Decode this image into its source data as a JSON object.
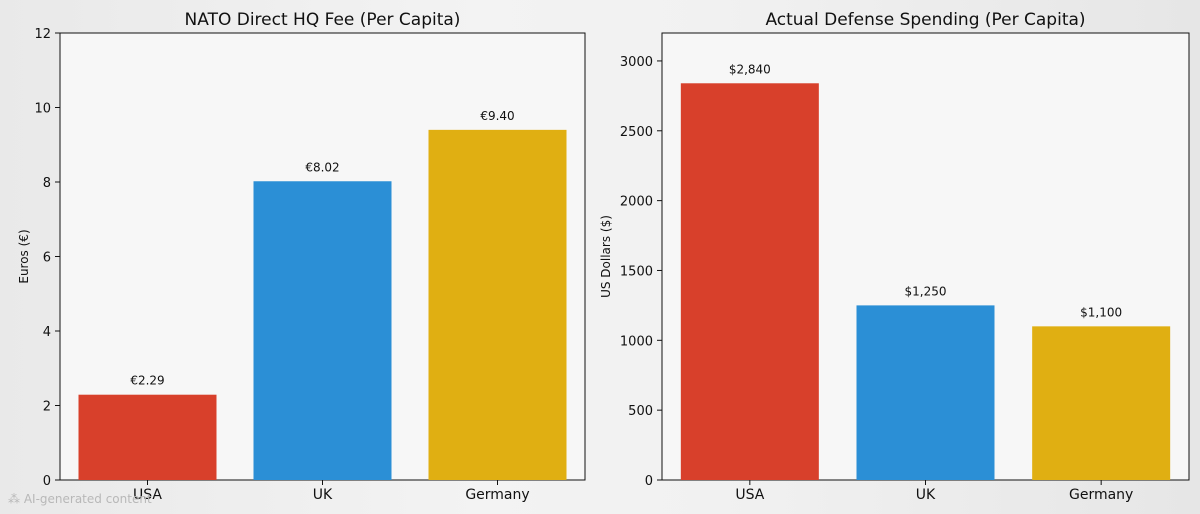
{
  "colors": {
    "usa": "#d8402b",
    "uk": "#2b8fd6",
    "germany": "#e0af12",
    "axis": "#111111"
  },
  "chart_data": [
    {
      "type": "bar",
      "title": "NATO Direct HQ Fee (Per Capita)",
      "xlabel": "",
      "ylabel": "Euros (€)",
      "categories": [
        "USA",
        "UK",
        "Germany"
      ],
      "values": [
        2.29,
        8.02,
        9.4
      ],
      "data_labels": [
        "€2.29",
        "€8.02",
        "€9.40"
      ],
      "ylim": [
        0,
        12
      ],
      "yticks": [
        0,
        2,
        4,
        6,
        8,
        10,
        12
      ],
      "grid": false
    },
    {
      "type": "bar",
      "title": "Actual Defense Spending (Per Capita)",
      "xlabel": "",
      "ylabel": "US Dollars ($)",
      "categories": [
        "USA",
        "UK",
        "Germany"
      ],
      "values": [
        2840,
        1250,
        1100
      ],
      "data_labels": [
        "$2,840",
        "$1,250",
        "$1,100"
      ],
      "ylim": [
        0,
        3200
      ],
      "yticks": [
        0,
        500,
        1000,
        1500,
        2000,
        2500,
        3000
      ],
      "grid": false
    }
  ],
  "watermark": "AI-generated content"
}
